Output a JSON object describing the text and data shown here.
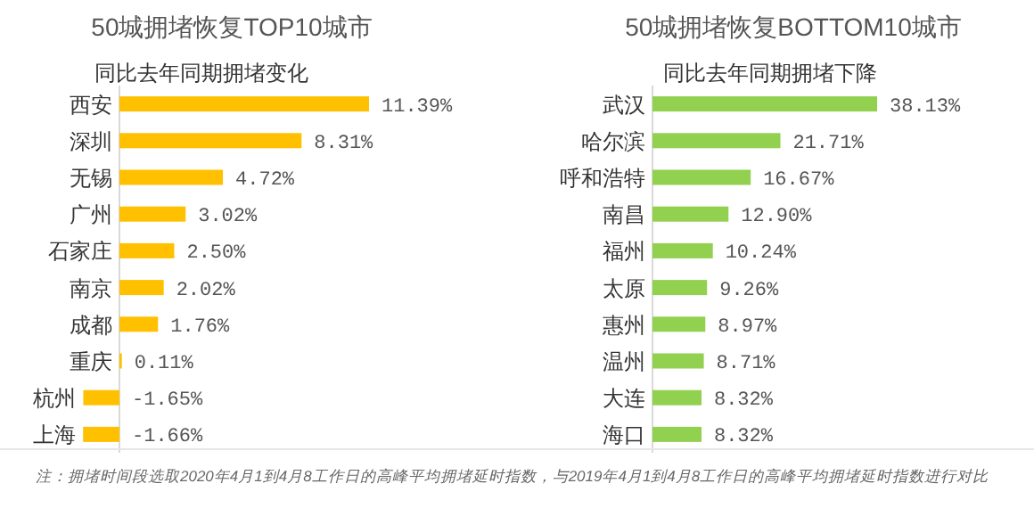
{
  "chart_data": [
    {
      "type": "bar",
      "orientation": "horizontal",
      "title": "50城拥堵恢复TOP10城市",
      "subtitle": "同比去年同期拥堵变化",
      "categories": [
        "西安",
        "深圳",
        "无锡",
        "广州",
        "石家庄",
        "南京",
        "成都",
        "重庆",
        "杭州",
        "上海"
      ],
      "values": [
        11.39,
        8.31,
        4.72,
        3.02,
        2.5,
        2.02,
        1.76,
        0.11,
        -1.65,
        -1.66
      ],
      "color": "#ffc000",
      "value_labels": [
        "11.39%",
        "8.31%",
        "4.72%",
        "3.02%",
        "2.50%",
        "2.02%",
        "1.76%",
        "0.11%",
        "-1.65%",
        "-1.66%"
      ],
      "annotations": [
        "注：拥堵时间段选取2020年4月1到4月8工作日的高峰平均拥堵延时指数，与2019年4月1到4月8工作日的高峰平均拥堵延时指数进行对比"
      ]
    },
    {
      "type": "bar",
      "orientation": "horizontal",
      "title": "50城拥堵恢复BOTTOM10城市",
      "subtitle": "同比去年同期拥堵下降",
      "categories": [
        "武汉",
        "哈尔滨",
        "呼和浩特",
        "南昌",
        "福州",
        "太原",
        "惠州",
        "温州",
        "大连",
        "海口"
      ],
      "values": [
        38.13,
        21.71,
        16.67,
        12.9,
        10.24,
        9.26,
        8.97,
        8.71,
        8.32,
        8.32
      ],
      "color": "#92d050",
      "value_labels": [
        "38.13%",
        "21.71%",
        "16.67%",
        "12.90%",
        "10.24%",
        "9.26%",
        "8.97%",
        "8.71%",
        "8.32%",
        "8.32%"
      ]
    }
  ]
}
